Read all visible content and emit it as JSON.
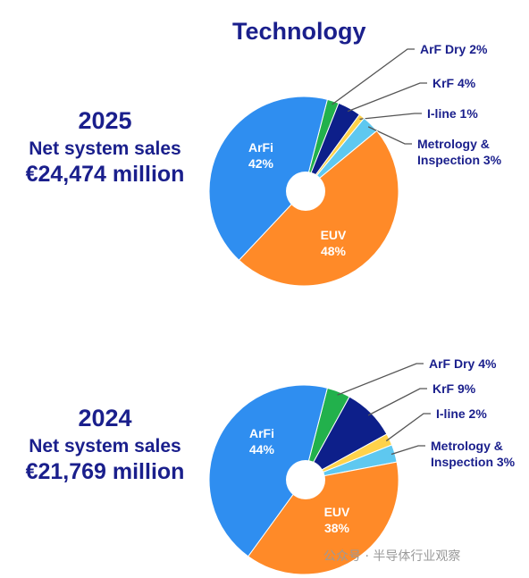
{
  "title": "Technology",
  "watermark": "公众号 · 半导体行业观察",
  "chart_data": [
    {
      "type": "pie",
      "year": "2025",
      "label": "Net system sales",
      "amount": "€24,474 million",
      "slices": [
        {
          "name": "ArF Dry",
          "value": 2,
          "color": "#22b14c",
          "text": "ArF Dry 2%"
        },
        {
          "name": "KrF",
          "value": 4,
          "color": "#0d1f8a",
          "text": "KrF 4%"
        },
        {
          "name": "I-line",
          "value": 1,
          "color": "#ffd24a",
          "text": "I-line 1%"
        },
        {
          "name": "Metrology & Inspection",
          "value": 3,
          "color": "#5ec8f0",
          "text": "Metrology &",
          "text2": "Inspection 3%"
        },
        {
          "name": "EUV",
          "value": 48,
          "color": "#ff8a28",
          "text": "EUV",
          "text2": "48%"
        },
        {
          "name": "ArFi",
          "value": 42,
          "color": "#2f8ef0",
          "text": "ArFi",
          "text2": "42%"
        }
      ]
    },
    {
      "type": "pie",
      "year": "2024",
      "label": "Net system sales",
      "amount": "€21,769 million",
      "slices": [
        {
          "name": "ArF Dry",
          "value": 4,
          "color": "#22b14c",
          "text": "ArF Dry 4%"
        },
        {
          "name": "KrF",
          "value": 9,
          "color": "#0d1f8a",
          "text": "KrF 9%"
        },
        {
          "name": "I-line",
          "value": 2,
          "color": "#ffd24a",
          "text": "I-line 2%"
        },
        {
          "name": "Metrology & Inspection",
          "value": 3,
          "color": "#5ec8f0",
          "text": "Metrology &",
          "text2": "Inspection 3%"
        },
        {
          "name": "EUV",
          "value": 38,
          "color": "#ff8a28",
          "text": "EUV",
          "text2": "38%"
        },
        {
          "name": "ArFi",
          "value": 44,
          "color": "#2f8ef0",
          "text": "ArFi",
          "text2": "44%"
        }
      ]
    }
  ]
}
